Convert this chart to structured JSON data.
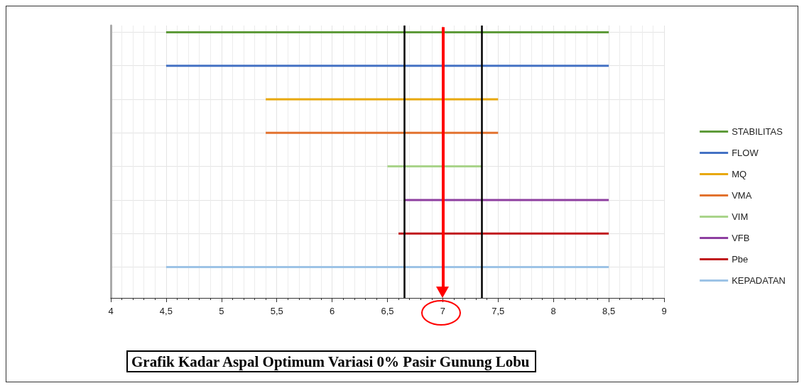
{
  "chart_data": {
    "type": "bar",
    "orientation": "horizontal",
    "title": "Grafik Kadar Aspal Optimum Variasi 0% Pasir Gunung Lobu",
    "categories": [
      null,
      null,
      null,
      null,
      null,
      null,
      null,
      null
    ],
    "series": [
      {
        "name": "STABILITAS",
        "color": "#5e9b3a",
        "base": [
          4.5,
          null,
          null,
          null,
          null,
          null,
          null,
          null
        ],
        "values": [
          4,
          null,
          null,
          null,
          null,
          null,
          null,
          null
        ]
      },
      {
        "name": "FLOW",
        "color": "#4472c4",
        "base": [
          null,
          4.5,
          null,
          null,
          null,
          null,
          null,
          null
        ],
        "values": [
          null,
          4,
          null,
          null,
          null,
          null,
          null,
          null
        ]
      },
      {
        "name": "MQ",
        "color": "#e8a80c",
        "base": [
          null,
          null,
          5.4,
          null,
          null,
          null,
          null,
          null
        ],
        "values": [
          null,
          null,
          2.1,
          null,
          null,
          null,
          null,
          null
        ]
      },
      {
        "name": "VMA",
        "color": "#e2722e",
        "base": [
          null,
          null,
          null,
          5.4,
          null,
          null,
          null,
          null
        ],
        "values": [
          null,
          null,
          null,
          2.1,
          null,
          null,
          null,
          null
        ]
      },
      {
        "name": "VIM",
        "color": "#a9d48a",
        "base": [
          null,
          null,
          null,
          null,
          6.5,
          null,
          null,
          null
        ],
        "values": [
          null,
          null,
          null,
          null,
          0.85,
          null,
          null,
          null
        ]
      },
      {
        "name": "VFB",
        "color": "#8e3fa0",
        "base": [
          null,
          null,
          null,
          null,
          null,
          6.65,
          null,
          null
        ],
        "values": [
          null,
          null,
          null,
          null,
          null,
          1.85,
          null,
          null
        ]
      },
      {
        "name": "Pbe",
        "color": "#c0181c",
        "base": [
          null,
          null,
          null,
          null,
          null,
          null,
          6.6,
          null
        ],
        "values": [
          null,
          null,
          null,
          null,
          null,
          null,
          1.9,
          null
        ]
      },
      {
        "name": "KEPADATAN",
        "color": "#9dc3e6",
        "base": [
          null,
          null,
          null,
          null,
          null,
          null,
          null,
          4.5
        ],
        "values": [
          null,
          null,
          null,
          null,
          null,
          null,
          null,
          4
        ]
      }
    ],
    "xlim": [
      4,
      9
    ],
    "xticks": [
      4,
      {
        "value": 4.5,
        "label": "4,5"
      },
      5,
      {
        "value": 5.5,
        "label": "5,5"
      },
      6,
      {
        "value": 6.5,
        "label": "6,5"
      },
      7,
      {
        "value": 7.5,
        "label": "7,5"
      },
      8,
      {
        "value": 8.5,
        "label": "8,5"
      },
      9
    ],
    "ref_lines": [
      {
        "axis": "x",
        "value": 6.65,
        "color": "#000000"
      },
      {
        "axis": "x",
        "value": 7.35,
        "color": "#000000"
      },
      {
        "axis": "x",
        "value": 7,
        "color": "#ff0000"
      }
    ],
    "grid": true,
    "legend": "right"
  }
}
